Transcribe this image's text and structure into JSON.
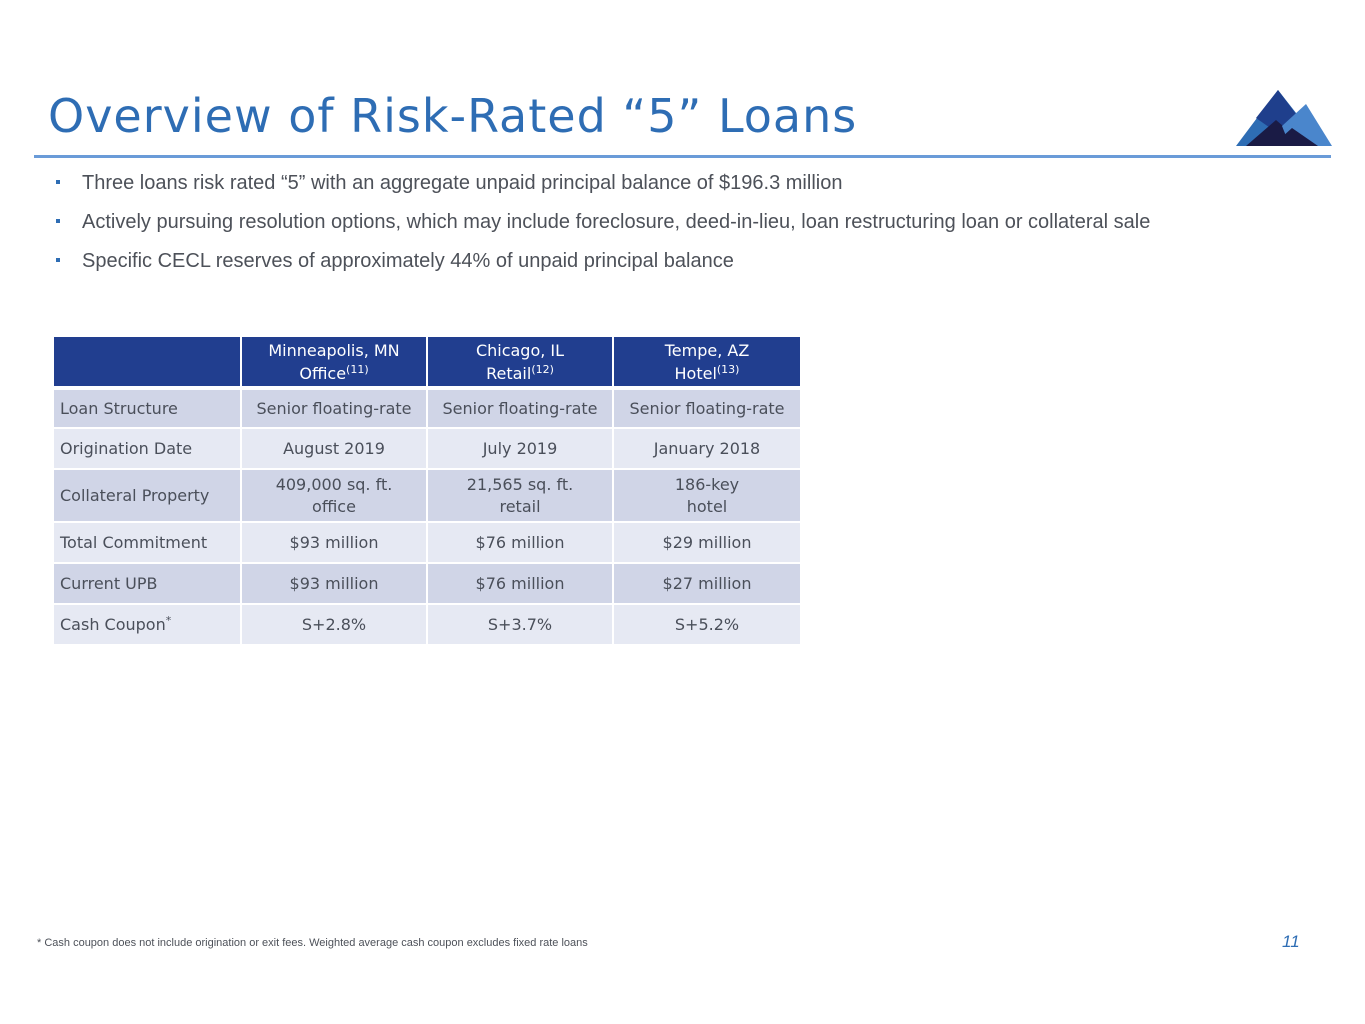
{
  "title": "Overview of Risk-Rated “5” Loans",
  "logo": {
    "icon": "mountain-logo-icon",
    "colors": [
      "#2e6db4",
      "#1f3f8c",
      "#1a1b45",
      "#4a86cc"
    ]
  },
  "bullets": [
    "Three loans risk rated “5” with an aggregate unpaid principal balance of $196.3 million",
    "Actively pursuing resolution options, which may include foreclosure, deed-in-lieu, loan restructuring loan or collateral sale",
    "Specific CECL reserves of approximately 44% of unpaid principal balance"
  ],
  "table": {
    "headers": [
      {
        "line1": "Minneapolis, MN",
        "line2": "Office",
        "note": "(11)"
      },
      {
        "line1": "Chicago, IL",
        "line2": "Retail",
        "note": "(12)"
      },
      {
        "line1": "Tempe, AZ",
        "line2": "Hotel",
        "note": "(13)"
      }
    ],
    "rows": [
      {
        "label": "Loan Structure",
        "label_note": "",
        "cells": [
          [
            "Senior floating-rate"
          ],
          [
            "Senior floating-rate"
          ],
          [
            "Senior floating-rate"
          ]
        ]
      },
      {
        "label": "Origination Date",
        "label_note": "",
        "cells": [
          [
            "August 2019"
          ],
          [
            "July 2019"
          ],
          [
            "January 2018"
          ]
        ]
      },
      {
        "label": "Collateral Property",
        "label_note": "",
        "cells": [
          [
            "409,000 sq. ft.",
            "office"
          ],
          [
            "21,565 sq. ft.",
            "retail"
          ],
          [
            "186-key",
            "hotel"
          ]
        ]
      },
      {
        "label": "Total Commitment",
        "label_note": "",
        "cells": [
          [
            "$93 million"
          ],
          [
            "$76 million"
          ],
          [
            "$29 million"
          ]
        ]
      },
      {
        "label": "Current UPB",
        "label_note": "",
        "cells": [
          [
            "$93 million"
          ],
          [
            "$76 million"
          ],
          [
            "$27 million"
          ]
        ]
      },
      {
        "label": "Cash Coupon",
        "label_note": "*",
        "cells": [
          [
            "S+2.8%"
          ],
          [
            "S+3.7%"
          ],
          [
            "S+5.2%"
          ]
        ]
      }
    ]
  },
  "footnote": "* Cash coupon does not include origination or exit fees. Weighted average cash coupon excludes fixed rate loans",
  "page_number": "11"
}
